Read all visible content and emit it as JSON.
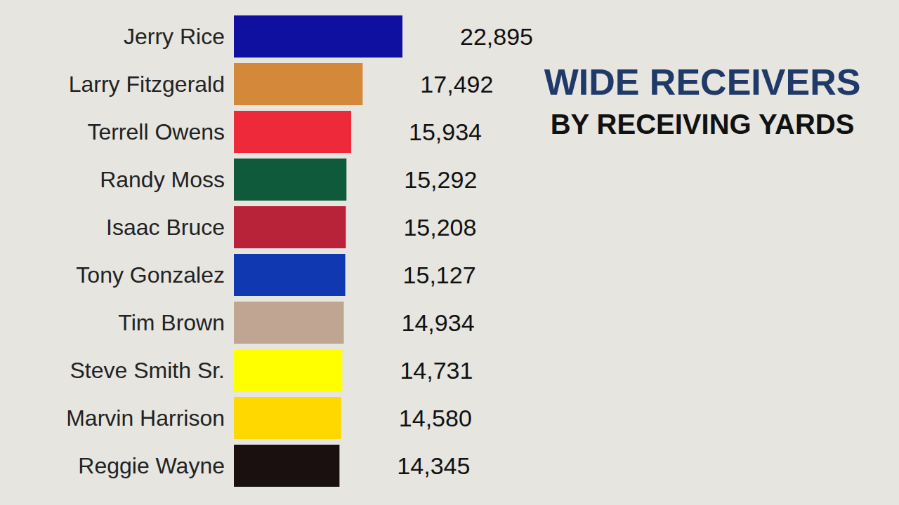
{
  "chart_data": {
    "type": "bar",
    "title": "WIDE RECEIVERS",
    "subtitle": "BY RECEIVING YARDS",
    "orientation": "horizontal",
    "categories": [
      "Jerry Rice",
      "Larry Fitzgerald",
      "Terrell Owens",
      "Randy Moss",
      "Isaac Bruce",
      "Tony Gonzalez",
      "Tim Brown",
      "Steve Smith Sr.",
      "Marvin Harrison",
      "Reggie Wayne"
    ],
    "values": [
      22895,
      17492,
      15934,
      15292,
      15208,
      15127,
      14934,
      14731,
      14580,
      14345
    ],
    "value_labels": [
      "22,895",
      "17,492",
      "15,934",
      "15,292",
      "15,208",
      "15,127",
      "14,934",
      "14,731",
      "14,580",
      "14,345"
    ],
    "colors": [
      "#1010a0",
      "#d4883a",
      "#ee2a3a",
      "#0e5a3a",
      "#b8233a",
      "#1038b0",
      "#c0a592",
      "#ffff00",
      "#ffd800",
      "#1a1010"
    ],
    "xlim": [
      0,
      22895
    ],
    "data_labels": true,
    "tick_labels": "y",
    "grid": false
  }
}
